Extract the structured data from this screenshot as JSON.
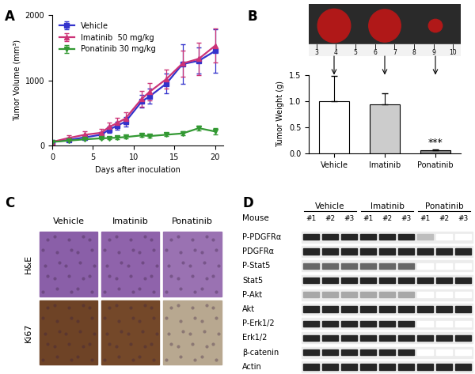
{
  "chart_data": [
    {
      "type": "line",
      "panel_label": "A",
      "x": [
        0,
        2,
        4,
        6,
        7,
        8,
        9,
        11,
        12,
        14,
        16,
        18,
        20
      ],
      "xlabel": "Days after inoculation",
      "ylabel": "Tumor Volume (mm³)",
      "xlim": [
        0,
        21
      ],
      "xticks": [
        0,
        5,
        10,
        15,
        20
      ],
      "ylim": [
        0,
        2000
      ],
      "yticks": [
        0,
        1000,
        2000
      ],
      "legend": "upper left",
      "series": [
        {
          "name": "Vehicle",
          "color": "#3333cc",
          "marker": "square",
          "values": [
            60,
            90,
            130,
            170,
            250,
            310,
            370,
            680,
            760,
            950,
            1250,
            1300,
            1450
          ],
          "errors": [
            10,
            20,
            30,
            40,
            50,
            60,
            70,
            100,
            120,
            150,
            300,
            200,
            330
          ]
        },
        {
          "name": "Imatinib  50 mg/kg",
          "color": "#cc3377",
          "marker": "triangle_up",
          "values": [
            60,
            120,
            170,
            200,
            290,
            350,
            420,
            720,
            830,
            1020,
            1260,
            1330,
            1530
          ],
          "errors": [
            15,
            40,
            50,
            60,
            70,
            80,
            90,
            120,
            130,
            150,
            200,
            250,
            260
          ]
        },
        {
          "name": "Ponatinib 30 mg/kg",
          "color": "#339933",
          "marker": "triangle_down",
          "values": [
            60,
            80,
            100,
            115,
            120,
            125,
            135,
            160,
            150,
            170,
            190,
            270,
            220
          ],
          "errors": [
            5,
            10,
            15,
            15,
            20,
            20,
            20,
            25,
            20,
            25,
            30,
            40,
            50
          ]
        }
      ]
    },
    {
      "type": "bar",
      "panel_label": "B",
      "categories": [
        "Vehicle",
        "Imatinib",
        "Ponatinib"
      ],
      "values": [
        1.0,
        0.93,
        0.06
      ],
      "errors": [
        0.48,
        0.22,
        0.01
      ],
      "colors": [
        "#ffffff",
        "#cccccc",
        "#888888"
      ],
      "ylabel": "Tumor Weight (g)",
      "ylim": [
        0,
        1.5
      ],
      "yticks": [
        {
          "value": 0,
          "label": "0.0"
        },
        {
          "value": 0.5,
          "label": "0.5"
        },
        {
          "value": 1,
          "label": "1.0"
        },
        {
          "value": 1.5,
          "label": "1.5"
        }
      ],
      "annotations": [
        {
          "text": "***",
          "category": "Ponatinib"
        }
      ],
      "photo": {
        "ruler_labels": [
          "3",
          "4",
          "5",
          "6",
          "7",
          "8",
          "9",
          "10"
        ]
      }
    }
  ],
  "histology": {
    "panel_label": "C",
    "columns": [
      "Vehicle",
      "Imatinib",
      "Ponatinib"
    ],
    "rows": [
      {
        "label": "H&E",
        "colors": [
          "#8a5fa8",
          "#8f63ab",
          "#9a72b2"
        ]
      },
      {
        "label": "Ki67",
        "colors": [
          "#6e4326",
          "#744829",
          "#b8a890"
        ]
      }
    ]
  },
  "western_blot": {
    "panel_label": "D",
    "groups": [
      "Vehicle",
      "Imatinib",
      "Ponatinib"
    ],
    "lane_title": "Mouse",
    "lanes": [
      "#1",
      "#2",
      "#3"
    ],
    "rows": [
      {
        "label": "P-PDGFRα",
        "values": [
          1,
          1,
          1,
          1,
          1,
          1,
          0.3,
          0,
          0
        ]
      },
      {
        "label": "PDGFRα",
        "values": [
          1,
          1,
          1,
          1,
          1,
          1,
          1,
          1,
          1
        ]
      },
      {
        "label": "P-Stat5",
        "values": [
          0.7,
          0.7,
          0.7,
          0.7,
          0.7,
          0.7,
          0,
          0,
          0
        ]
      },
      {
        "label": "Stat5",
        "values": [
          1,
          1,
          1,
          1,
          1,
          1,
          1,
          1,
          1
        ]
      },
      {
        "label": "P-Akt",
        "values": [
          0.4,
          0.4,
          0.4,
          0.4,
          0.4,
          0.4,
          0,
          0,
          0
        ]
      },
      {
        "label": "Akt",
        "values": [
          1,
          1,
          1,
          1,
          1,
          1,
          1,
          1,
          1
        ]
      },
      {
        "label": "P-Erk1/2",
        "values": [
          1,
          1,
          1,
          1,
          1,
          1,
          0,
          0,
          0
        ]
      },
      {
        "label": "Erk1/2",
        "values": [
          1,
          1,
          1,
          1,
          1,
          1,
          1,
          1,
          1
        ]
      },
      {
        "label": "β-catenin",
        "values": [
          1,
          1,
          1,
          1,
          1,
          1,
          0,
          0,
          0
        ]
      },
      {
        "label": "Actin",
        "values": [
          1,
          1,
          1,
          1,
          1,
          1,
          1,
          1,
          1
        ]
      }
    ]
  }
}
